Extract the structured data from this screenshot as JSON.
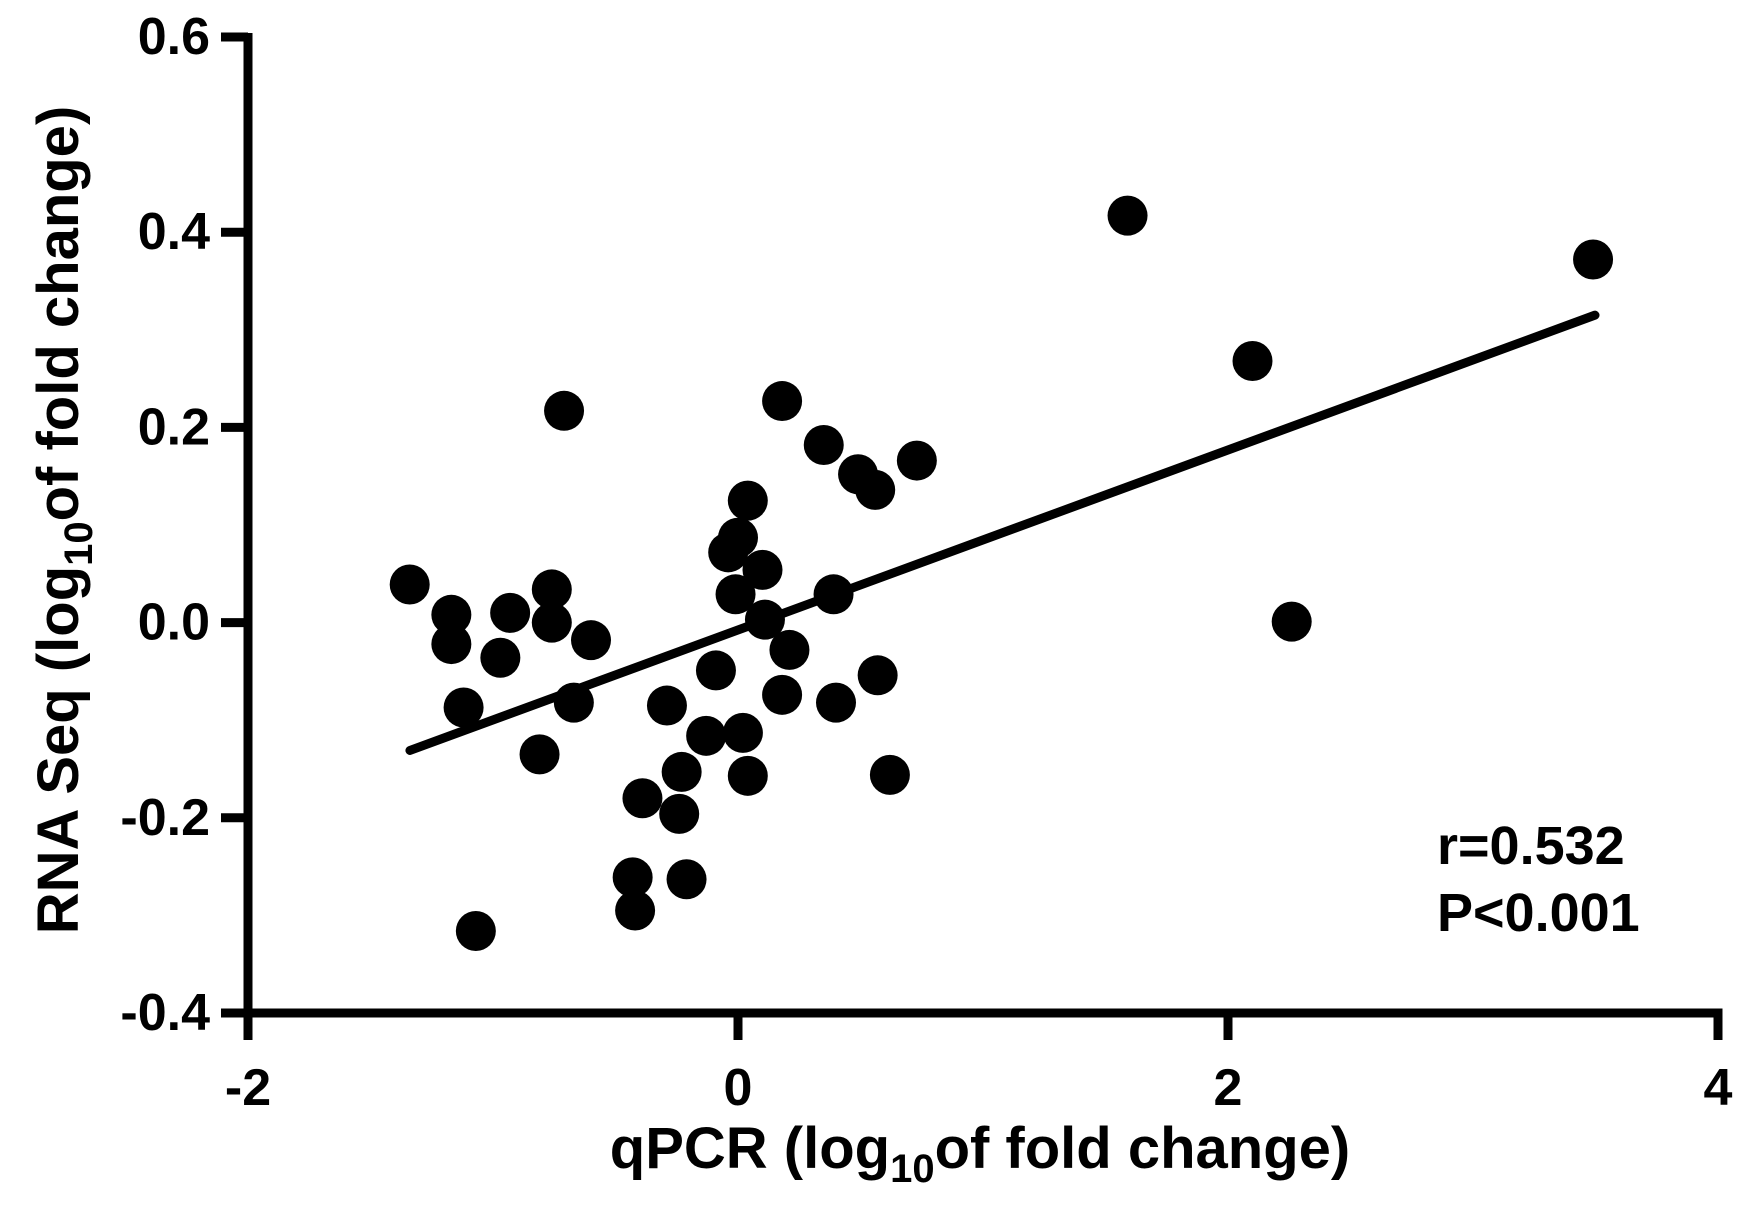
{
  "chart_data": {
    "type": "scatter",
    "title": "",
    "xlabel_parts": {
      "pre": "qPCR (log",
      "sub": "10",
      "post": "of fold change)"
    },
    "ylabel_parts": {
      "pre": "RNA Seq (log",
      "sub": "10",
      "post": "of fold change)"
    },
    "xlim": [
      -2,
      4
    ],
    "ylim": [
      -0.4,
      0.6
    ],
    "xticks": [
      -2,
      0,
      2,
      4
    ],
    "xtick_labels": [
      "-2",
      "0",
      "2",
      "4"
    ],
    "yticks": [
      0.6,
      0.4,
      0.2,
      0.0,
      -0.2,
      -0.4
    ],
    "ytick_labels": [
      "0.6",
      "0.4",
      "0.2",
      "0.0",
      "-0.2",
      "-0.4"
    ],
    "grid": false,
    "legend": null,
    "marker": {
      "shape": "circle",
      "color": "#000000",
      "radius_px": 20
    },
    "line_color": "#000000",
    "points": [
      [
        -1.34,
        0.039
      ],
      [
        -1.17,
        0.008
      ],
      [
        -1.17,
        -0.022
      ],
      [
        -1.12,
        -0.087
      ],
      [
        -1.07,
        -0.316
      ],
      [
        -0.97,
        -0.036
      ],
      [
        -0.93,
        0.01
      ],
      [
        -0.81,
        -0.135
      ],
      [
        -0.76,
        0.034
      ],
      [
        -0.76,
        0.0
      ],
      [
        -0.71,
        0.217
      ],
      [
        -0.67,
        -0.082
      ],
      [
        -0.6,
        -0.018
      ],
      [
        -0.43,
        -0.261
      ],
      [
        -0.42,
        -0.295
      ],
      [
        -0.39,
        -0.18
      ],
      [
        -0.29,
        -0.085
      ],
      [
        -0.23,
        -0.153
      ],
      [
        -0.24,
        -0.196
      ],
      [
        -0.21,
        -0.263
      ],
      [
        -0.13,
        -0.116
      ],
      [
        -0.09,
        -0.049
      ],
      [
        -0.04,
        0.072
      ],
      [
        -0.01,
        0.029
      ],
      [
        0.0,
        0.087
      ],
      [
        0.02,
        -0.113
      ],
      [
        0.04,
        0.125
      ],
      [
        0.04,
        -0.157
      ],
      [
        0.1,
        0.054
      ],
      [
        0.11,
        0.003
      ],
      [
        0.18,
        0.227
      ],
      [
        0.18,
        -0.074
      ],
      [
        0.21,
        -0.028
      ],
      [
        0.35,
        0.182
      ],
      [
        0.39,
        0.029
      ],
      [
        0.4,
        -0.082
      ],
      [
        0.49,
        0.152
      ],
      [
        0.56,
        0.136
      ],
      [
        0.57,
        -0.054
      ],
      [
        0.62,
        -0.156
      ],
      [
        0.73,
        0.166
      ],
      [
        1.59,
        0.417
      ],
      [
        2.1,
        0.268
      ],
      [
        2.26,
        0.001
      ],
      [
        3.49,
        0.372
      ]
    ],
    "trendline": {
      "x1": -1.339,
      "y1": -0.131,
      "x2": 3.498,
      "y2": 0.315
    },
    "annotations": [
      {
        "text": "r=0.532"
      },
      {
        "text": "P<0.001"
      }
    ]
  }
}
